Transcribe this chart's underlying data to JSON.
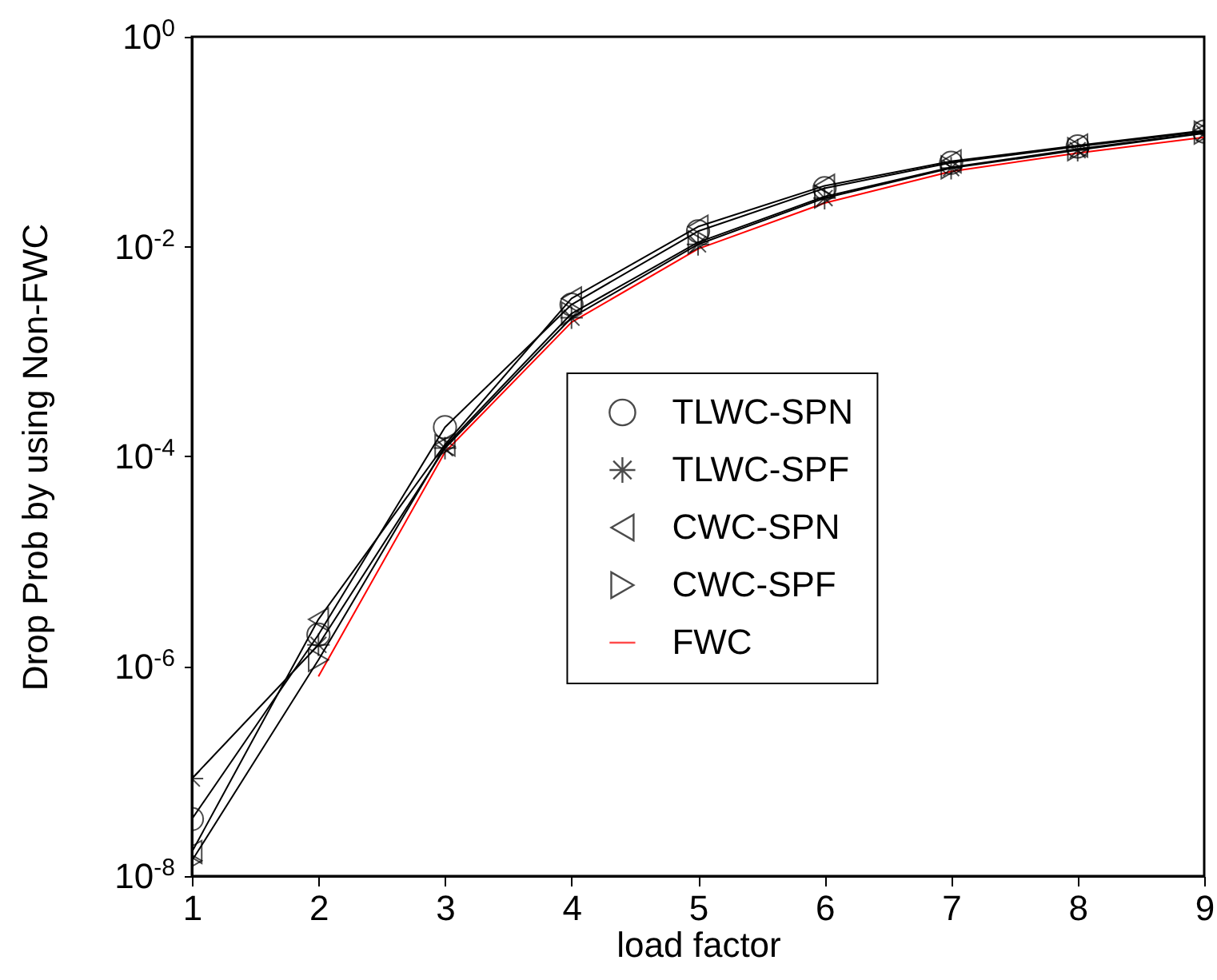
{
  "chart_data": {
    "type": "line",
    "xlabel": "load factor",
    "ylabel": "Drop Prob by using Non-FWC",
    "x": [
      1,
      2,
      3,
      4,
      5,
      6,
      7,
      8,
      9
    ],
    "series": [
      {
        "name": "TLWC-SPN",
        "color": "#000000",
        "marker": "circle",
        "values": [
          3.5e-08,
          2e-06,
          0.00019,
          0.0028,
          0.014,
          0.036,
          0.063,
          0.09,
          0.125
        ]
      },
      {
        "name": "TLWC-SPF",
        "color": "#000000",
        "marker": "cross",
        "values": [
          8.5e-08,
          1.6e-06,
          0.00012,
          0.0021,
          0.0105,
          0.029,
          0.056,
          0.083,
          0.12
        ]
      },
      {
        "name": "CWC-SPN",
        "color": "#000000",
        "marker": "triangle",
        "values": [
          1.7e-08,
          2.8e-06,
          0.00013,
          0.0032,
          0.0155,
          0.038,
          0.065,
          0.092,
          0.128
        ]
      },
      {
        "name": "CWC-SPF",
        "color": "#000000",
        "marker": "triangle",
        "values": [
          1.4e-08,
          1.15e-06,
          0.000125,
          0.0023,
          0.011,
          0.03,
          0.057,
          0.085,
          0.122
        ]
      },
      {
        "name": "FWC",
        "color": "#ff0000",
        "marker": "none",
        "values": [
          null,
          8e-07,
          0.00011,
          0.0019,
          0.0095,
          0.026,
          0.052,
          0.078,
          0.11
        ]
      }
    ],
    "xlim": [
      1,
      9
    ],
    "xticks": [
      1,
      2,
      3,
      4,
      5,
      6,
      7,
      8,
      9
    ],
    "ylim": [
      1e-08,
      1
    ],
    "log": "y",
    "yticks": [
      {
        "value": 1e-08,
        "label": "10$^{-8}$"
      },
      {
        "value": 1e-06,
        "label": "10$^{-6}$"
      },
      {
        "value": 0.0001,
        "label": "10$^{-4}$"
      },
      {
        "value": 0.01,
        "label": "10$^{-2}$"
      },
      {
        "value": 1,
        "label": "10$^{0}$"
      }
    ],
    "grid": false,
    "legend": "center right"
  }
}
